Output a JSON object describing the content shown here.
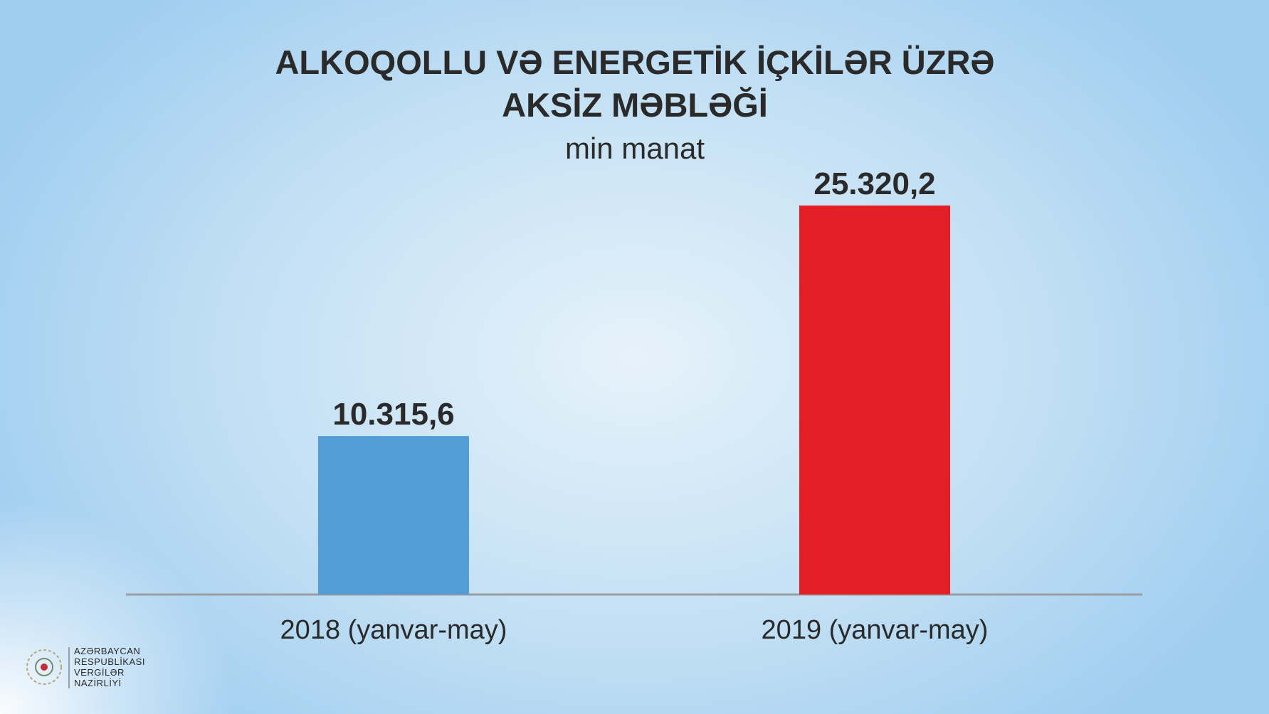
{
  "chart_data": {
    "type": "bar",
    "title": [
      "ALKOQOLLU VƏ ENERGETİK İÇKİLƏR ÜZRƏ",
      "AKSİZ MƏBLƏĞİ"
    ],
    "subtitle": "min manat",
    "categories": [
      "2018 (yanvar-may)",
      "2019 (yanvar-may)"
    ],
    "values": [
      10315.6,
      25320.2
    ],
    "value_labels": [
      "10.315,6",
      "25.320,2"
    ],
    "colors": [
      "#539dd7",
      "#e31e25"
    ]
  },
  "logo": {
    "lines": [
      "AZƏRBAYCAN",
      "RESPUBLİKASI",
      "VERGİLƏR",
      "NAZİRLİYİ"
    ]
  }
}
